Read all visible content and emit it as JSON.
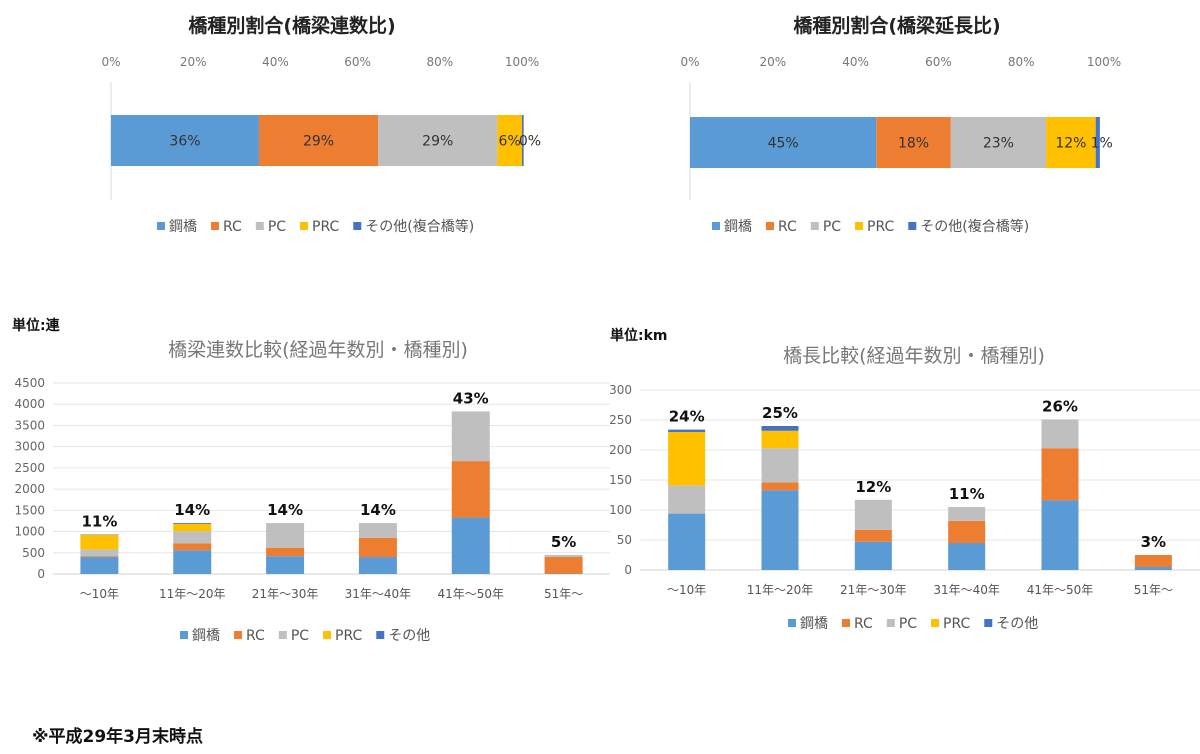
{
  "footnote": "※平成29年3月末時点",
  "chart_data": [
    {
      "type": "bar",
      "orientation": "horizontal",
      "stacked": "percent",
      "title": "橋種別割合(橋梁連数比)",
      "xlim": [
        0,
        100
      ],
      "ticks": [
        "0%",
        "20%",
        "40%",
        "60%",
        "80%",
        "100%"
      ],
      "legend": "bottom",
      "series": [
        {
          "name": "鋼橋",
          "value": 36,
          "label": "36%",
          "color": "#5b9bd5"
        },
        {
          "name": "RC",
          "value": 29,
          "label": "29%",
          "color": "#ed7d31"
        },
        {
          "name": "PC",
          "value": 29,
          "label": "29%",
          "color": "#bfbfbf"
        },
        {
          "name": "PRC",
          "value": 6,
          "label": "6%",
          "color": "#ffc000"
        },
        {
          "name": "その他(複合橋等)",
          "value": 0.4,
          "label": "0%",
          "color": "#4472c4"
        }
      ]
    },
    {
      "type": "bar",
      "orientation": "horizontal",
      "stacked": "percent",
      "title": "橋種別割合(橋梁延長比)",
      "xlim": [
        0,
        100
      ],
      "ticks": [
        "0%",
        "20%",
        "40%",
        "60%",
        "80%",
        "100%"
      ],
      "legend": "bottom",
      "series": [
        {
          "name": "鋼橋",
          "value": 45,
          "label": "45%",
          "color": "#5b9bd5"
        },
        {
          "name": "RC",
          "value": 18,
          "label": "18%",
          "color": "#ed7d31"
        },
        {
          "name": "PC",
          "value": 23,
          "label": "23%",
          "color": "#bfbfbf"
        },
        {
          "name": "PRC",
          "value": 12,
          "label": "12%",
          "color": "#ffc000"
        },
        {
          "name": "その他(複合橋等)",
          "value": 1,
          "label": "1%",
          "color": "#4472c4"
        }
      ]
    },
    {
      "type": "bar",
      "stacked": true,
      "title": "橋梁連数比較(経過年数別・橋種別)",
      "unit_label": "単位:連",
      "ylim": [
        0,
        4500
      ],
      "yticks": [
        0,
        500,
        1000,
        1500,
        2000,
        2500,
        3000,
        3500,
        4000,
        4500
      ],
      "categories": [
        "～10年",
        "11年～20年",
        "21年～30年",
        "31年～40年",
        "41年～50年",
        "51年～"
      ],
      "top_labels": [
        "11%",
        "14%",
        "14%",
        "14%",
        "43%",
        "5%"
      ],
      "legend": "bottom",
      "series": [
        {
          "name": "鋼橋",
          "color": "#5b9bd5",
          "values": [
            400,
            560,
            420,
            400,
            1330,
            10
          ]
        },
        {
          "name": "RC",
          "color": "#ed7d31",
          "values": [
            20,
            160,
            200,
            450,
            1330,
            390
          ]
        },
        {
          "name": "PC",
          "color": "#bfbfbf",
          "values": [
            160,
            290,
            580,
            350,
            1170,
            50
          ]
        },
        {
          "name": "PRC",
          "color": "#ffc000",
          "values": [
            340,
            170,
            0,
            0,
            0,
            0
          ]
        },
        {
          "name": "その他",
          "color": "#4472c4",
          "values": [
            10,
            20,
            0,
            0,
            0,
            0
          ]
        }
      ]
    },
    {
      "type": "bar",
      "stacked": true,
      "title": "橋長比較(経過年数別・橋種別)",
      "unit_label": "単位:km",
      "ylim": [
        0,
        300
      ],
      "yticks": [
        0,
        50,
        100,
        150,
        200,
        250,
        300
      ],
      "categories": [
        "～10年",
        "11年～20年",
        "21年～30年",
        "31年～40年",
        "41年～50年",
        "51年～"
      ],
      "top_labels": [
        "24%",
        "25%",
        "12%",
        "11%",
        "26%",
        "3%"
      ],
      "legend": "bottom",
      "series": [
        {
          "name": "鋼橋",
          "color": "#5b9bd5",
          "values": [
            94,
            133,
            47,
            45,
            116,
            5
          ]
        },
        {
          "name": "RC",
          "color": "#ed7d31",
          "values": [
            0,
            13,
            20,
            37,
            87,
            20
          ]
        },
        {
          "name": "PC",
          "color": "#bfbfbf",
          "values": [
            47,
            57,
            50,
            23,
            48,
            0
          ]
        },
        {
          "name": "PRC",
          "color": "#ffc000",
          "values": [
            89,
            29,
            0,
            0,
            0,
            0
          ]
        },
        {
          "name": "その他",
          "color": "#4472c4",
          "values": [
            4,
            8,
            0,
            0,
            0,
            0
          ]
        }
      ]
    }
  ]
}
